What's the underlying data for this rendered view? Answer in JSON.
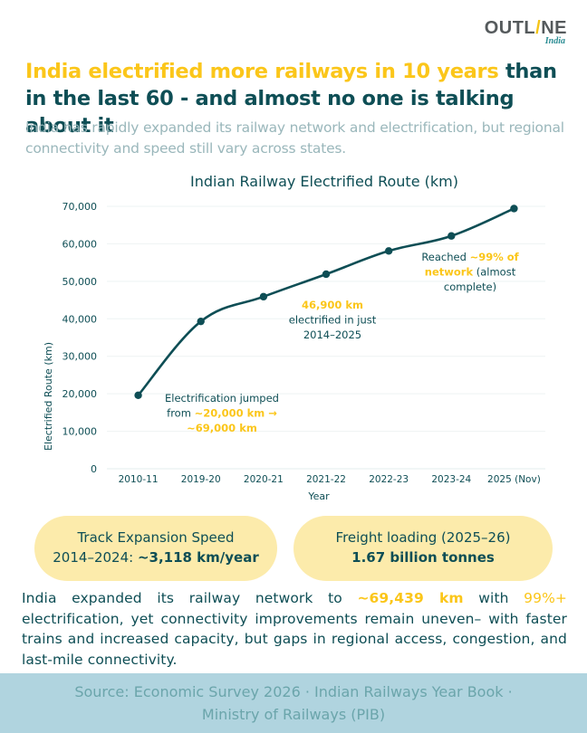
{
  "brand": {
    "logo_left": "OUTL",
    "logo_slash": "/",
    "logo_right": "NE",
    "logo_sub": "India"
  },
  "headline": {
    "highlight": "India electrified more railways in 10 years",
    "rest": " than in the last 60 - and almost no one is talking about it"
  },
  "subhead": "India has rapidly expanded its railway network and electrification, but regional connectivity and speed still vary across states.",
  "colors": {
    "primary": "#0e4e55",
    "accent": "#fbc61a",
    "pill_bg": "#fcebab",
    "footer_bg": "#b0d4df",
    "muted": "#9ab7bb",
    "grid": "#eef3f3"
  },
  "chart_data": {
    "type": "line",
    "title": "Indian Railway Electrified Route (km)",
    "xlabel": "Year",
    "ylabel": "Electrified Route (km)",
    "categories": [
      "2010-11",
      "2019-20",
      "2020-21",
      "2021-22",
      "2022-23",
      "2023-24",
      "2025 (Nov)"
    ],
    "series": [
      {
        "name": "Electrified Route (km)",
        "values": [
          19600,
          39300,
          45900,
          51900,
          58100,
          62100,
          69400
        ]
      }
    ],
    "ylim": [
      0,
      70000
    ],
    "yticks": [
      0,
      10000,
      20000,
      30000,
      40000,
      50000,
      60000,
      70000
    ],
    "ytick_labels": [
      "0",
      "10,000",
      "20,000",
      "30,000",
      "40,000",
      "50,000",
      "60,000",
      "70,000"
    ],
    "grid": true,
    "legend": "none",
    "annotations": [
      {
        "id": "jump",
        "lines": [
          [
            {
              "t": "Electrification jumped",
              "hl": false
            }
          ],
          [
            {
              "t": "from ",
              "hl": false
            },
            {
              "t": "~20,000 km →",
              "hl": true
            }
          ],
          [
            {
              "t": "~69,000 km",
              "hl": true
            }
          ]
        ]
      },
      {
        "id": "km469",
        "lines": [
          [
            {
              "t": "46,900 km",
              "hl": true
            }
          ],
          [
            {
              "t": "electrified in just",
              "hl": false
            }
          ],
          [
            {
              "t": "2014–2025",
              "hl": false
            }
          ]
        ]
      },
      {
        "id": "reached",
        "lines": [
          [
            {
              "t": "Reached ",
              "hl": false
            },
            {
              "t": "~99% of",
              "hl": true
            }
          ],
          [
            {
              "t": "network",
              "hl": true
            },
            {
              "t": " (almost",
              "hl": false
            }
          ],
          [
            {
              "t": "complete)",
              "hl": false
            }
          ]
        ]
      }
    ]
  },
  "stats": [
    {
      "line1": "Track Expansion Speed",
      "line2_prefix": "2014–2024: ",
      "line2_bold": "~3,118 km/year"
    },
    {
      "line1": "Freight loading (2025–26)",
      "line2_prefix": "",
      "line2_bold": "1.67 billion tonnes"
    }
  ],
  "body": {
    "p1": "India expanded its railway network to ",
    "hl1": "~69,439 km",
    "p2": " with ",
    "hl2": "99%+",
    "p3": " electrification, yet connectivity improvements remain uneven– with faster trains and increased capacity, but gaps in regional access, congestion, and last-mile connectivity."
  },
  "footer": {
    "line1": "Source: Economic Survey 2026 · Indian Railways Year Book ·",
    "line2": "Ministry of Railways (PIB)"
  }
}
